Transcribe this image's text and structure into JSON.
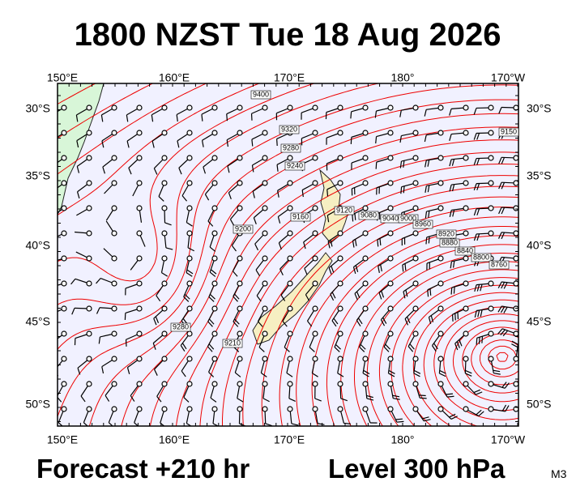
{
  "header": {
    "title": "1800 NZST Tue 18 Aug 2026"
  },
  "map": {
    "lon_labels": [
      "150°E",
      "160°E",
      "170°E",
      "180°",
      "170°W"
    ],
    "lat_labels": [
      "30°S",
      "35°S",
      "40°S",
      "45°S",
      "50°S"
    ],
    "contour_labels": [
      "9400",
      "9320",
      "9280",
      "9240",
      "9150",
      "9200",
      "9160",
      "9120",
      "9080",
      "9040",
      "9000",
      "8960",
      "8920",
      "8880",
      "8840",
      "8800",
      "8760",
      "9280",
      "9210"
    ]
  },
  "footer": {
    "forecast": "Forecast +210 hr",
    "level": "Level 300 hPa",
    "model": "M3"
  }
}
